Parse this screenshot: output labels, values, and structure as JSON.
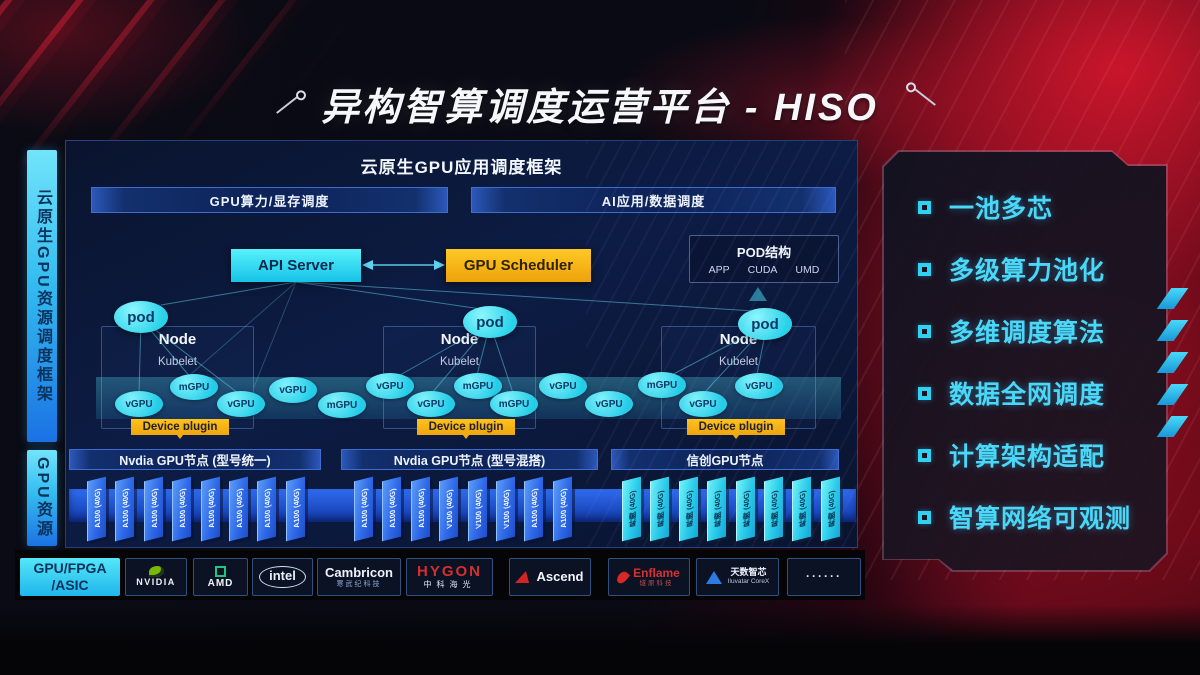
{
  "title": {
    "text": "异构智算调度运营平台 - HISO"
  },
  "sidebar": {
    "framework": "云原生GPU资源调度框架",
    "resource": "GPU资源",
    "hardware": "GPU/FPGA\n/ASIC"
  },
  "main": {
    "header": "云原生GPU应用调度框架",
    "top_bars": [
      "GPU算力/显存调度",
      "AI应用/数据调度"
    ],
    "api_server": "API Server",
    "gpu_scheduler": "GPU Scheduler",
    "pod_structure": {
      "title": "POD结构",
      "items": [
        "APP",
        "CUDA",
        "UMD"
      ]
    },
    "cluster_labels": {
      "pod": "pod",
      "node": "Node",
      "kubelet": "Kubelet",
      "device_plugin": "Device plugin"
    },
    "gpu_ellipses": [
      "vGPU",
      "mGPU",
      "vGPU",
      "vGPU",
      "mGPU",
      "vGPU",
      "vGPU",
      "mGPU",
      "mGPU",
      "vGPU",
      "vGPU",
      "mGPU",
      "vGPU",
      "vGPU"
    ],
    "node_bars": [
      "Nvdia GPU节点 (型号统一)",
      "Nvdia GPU节点 (型号混搭)",
      "信创GPU节点"
    ],
    "gpu_cards": [
      [
        "A100 (40G)",
        "A100 (40G)",
        "A100 (40G)",
        "A100 (40G)",
        "A100 (40G)",
        "A100 (40G)",
        "A100 (40G)",
        "A100 (40G)"
      ],
      [
        "A100 (40G)",
        "A100 (40G)",
        "A100 (40G)",
        "V100 (40G)",
        "V100 (40G)",
        "V100 (40G)",
        "A100 (40G)",
        "A100 (40G)"
      ],
      [
        "昇腾 (40G)",
        "昇腾 (40G)",
        "昇腾 (40G)",
        "昇腾 (40G)",
        "昇腾 (40G)",
        "昇腾 (40G)",
        "昇腾 (40G)",
        "昇腾 (40G)"
      ]
    ]
  },
  "vendors": [
    {
      "id": "nvidia",
      "main": "NVIDIA"
    },
    {
      "id": "amd",
      "main": "AMD"
    },
    {
      "id": "intel",
      "main": "intel"
    },
    {
      "id": "cambricon",
      "main": "Cambricon",
      "sub": "寒武纪科技"
    },
    {
      "id": "hygon",
      "main": "HYGON",
      "sub": "中科海光"
    },
    {
      "id": "ascend",
      "main": "Ascend"
    },
    {
      "id": "enflame",
      "main": "Enflame",
      "sub": "燧原科技"
    },
    {
      "id": "iluvatar",
      "main": "天数智芯",
      "sub": "Iluvatar CoreX"
    },
    {
      "id": "more",
      "main": "······"
    }
  ],
  "features": [
    "一池多芯",
    "多级算力池化",
    "多维调度算法",
    "数据全网调度",
    "计算架构适配",
    "智算网络可观测"
  ],
  "colors": {
    "accent_cyan": "#35dcf5",
    "accent_yellow": "#f7b517",
    "accent_blue": "#2a6cf0",
    "accent_red": "#c01228"
  }
}
